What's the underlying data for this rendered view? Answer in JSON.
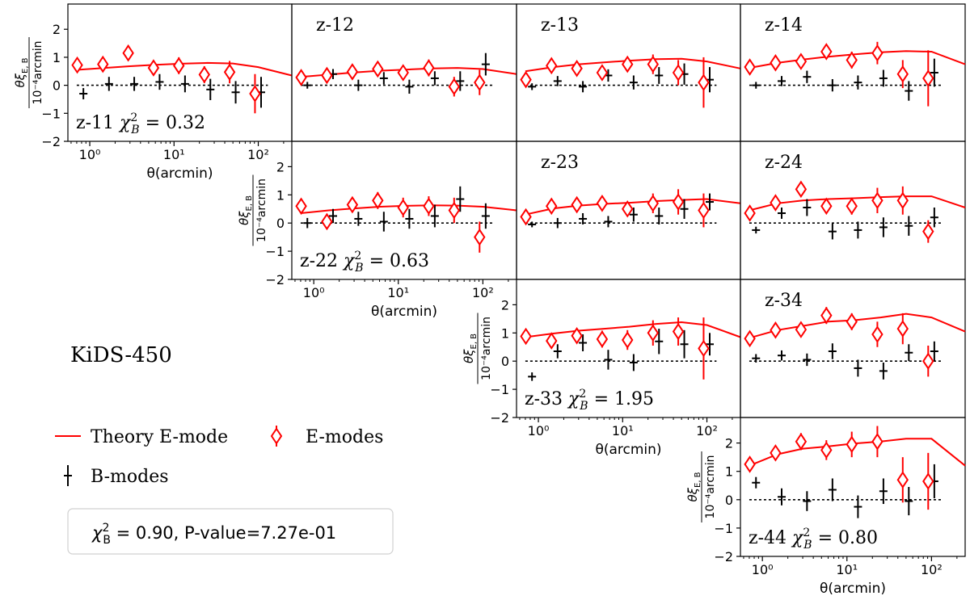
{
  "figure": {
    "survey_label": "KiDS-450",
    "xlabel": "θ(arcmin)",
    "ylabel_top": "θξ",
    "ylabel_sub": "E, B",
    "ylabel_bottom": "10⁻⁴arcmin",
    "summary": "χ²_B = 0.90, P-value=7.27e-01",
    "summary_chi_symbol": "χ",
    "summary_chi_sup": "2",
    "summary_chi_sub": "B",
    "summary_rest": " = 0.90, P-value=7.27e-01"
  },
  "legend": {
    "theory_label": "Theory E-mode",
    "emode_label": "E-modes",
    "bmode_label": "B-modes"
  },
  "colors": {
    "theory": "#ff0000",
    "emode": "#ff0000",
    "bmode": "#000000",
    "zero_line": "#000000"
  },
  "chart_data": {
    "type": "scatter",
    "xscale": "log",
    "xlim": [
      0.55,
      250
    ],
    "ylim": [
      -2,
      2.9
    ],
    "yticks": [
      -2,
      -1,
      0,
      1,
      2
    ],
    "xticks": [
      "10⁰",
      "10¹",
      "10²"
    ],
    "panels": [
      {
        "id": "z-11",
        "label": "z-11",
        "chi2": "0.32",
        "row": 0,
        "col": 0,
        "show_xaxis": true,
        "show_yaxis": true,
        "theory": {
          "x": [
            0.7,
            1.5,
            3,
            6,
            12,
            25,
            50,
            100,
            250
          ],
          "y": [
            0.55,
            0.62,
            0.68,
            0.73,
            0.77,
            0.8,
            0.78,
            0.65,
            0.35
          ]
        },
        "emode": {
          "x": [
            0.71,
            1.43,
            2.86,
            5.71,
            11.4,
            22.9,
            45.7,
            91.4
          ],
          "y": [
            0.72,
            0.75,
            1.15,
            0.62,
            0.7,
            0.38,
            0.47,
            -0.3
          ],
          "err": [
            0.18,
            0.18,
            0.2,
            0.25,
            0.3,
            0.3,
            0.4,
            0.7
          ]
        },
        "bmode": {
          "x": [
            0.84,
            1.69,
            3.37,
            6.74,
            13.5,
            27.0,
            53.9,
            108
          ],
          "y": [
            -0.3,
            0.05,
            0.05,
            0.12,
            0.05,
            -0.15,
            -0.25,
            -0.25
          ],
          "err": [
            0.2,
            0.25,
            0.25,
            0.28,
            0.3,
            0.38,
            0.4,
            0.55
          ]
        }
      },
      {
        "id": "z-12",
        "label": "z-12",
        "chi2": "",
        "row": 0,
        "col": 1,
        "show_xaxis": false,
        "show_yaxis": false,
        "theory": {
          "x": [
            0.7,
            1.5,
            3,
            6,
            12,
            25,
            50,
            100,
            250
          ],
          "y": [
            0.3,
            0.38,
            0.46,
            0.52,
            0.56,
            0.6,
            0.62,
            0.58,
            0.4
          ]
        },
        "emode": {
          "x": [
            0.71,
            1.43,
            2.86,
            5.71,
            11.4,
            22.9,
            45.7,
            91.4
          ],
          "y": [
            0.28,
            0.35,
            0.48,
            0.58,
            0.45,
            0.62,
            -0.05,
            0.1
          ],
          "err": [
            0.15,
            0.15,
            0.18,
            0.2,
            0.25,
            0.3,
            0.35,
            0.45
          ]
        },
        "bmode": {
          "x": [
            0.84,
            1.69,
            3.37,
            6.74,
            13.5,
            27.0,
            53.9,
            108
          ],
          "y": [
            0.0,
            0.4,
            0.0,
            0.25,
            -0.05,
            0.25,
            0.15,
            0.75
          ],
          "err": [
            0.12,
            0.18,
            0.2,
            0.22,
            0.25,
            0.25,
            0.35,
            0.4
          ]
        }
      },
      {
        "id": "z-13",
        "label": "z-13",
        "chi2": "",
        "row": 0,
        "col": 2,
        "show_xaxis": false,
        "show_yaxis": false,
        "theory": {
          "x": [
            0.7,
            1.5,
            3,
            6,
            12,
            25,
            50,
            100,
            250
          ],
          "y": [
            0.5,
            0.65,
            0.75,
            0.82,
            0.88,
            0.93,
            0.95,
            0.85,
            0.6
          ]
        },
        "emode": {
          "x": [
            0.71,
            1.43,
            2.86,
            5.71,
            11.4,
            22.9,
            45.7,
            91.4
          ],
          "y": [
            0.2,
            0.7,
            0.6,
            0.45,
            0.75,
            0.75,
            0.45,
            0.1
          ],
          "err": [
            0.15,
            0.18,
            0.18,
            0.2,
            0.25,
            0.35,
            0.45,
            0.9
          ]
        },
        "bmode": {
          "x": [
            0.84,
            1.69,
            3.37,
            6.74,
            13.5,
            27.0,
            53.9,
            108
          ],
          "y": [
            -0.05,
            0.15,
            -0.05,
            0.35,
            0.1,
            0.35,
            0.4,
            0.2
          ],
          "err": [
            0.12,
            0.18,
            0.2,
            0.22,
            0.25,
            0.3,
            0.38,
            0.45
          ]
        }
      },
      {
        "id": "z-14",
        "label": "z-14",
        "chi2": "",
        "row": 0,
        "col": 3,
        "show_xaxis": false,
        "show_yaxis": false,
        "theory": {
          "x": [
            0.7,
            1.5,
            3,
            6,
            12,
            25,
            50,
            100,
            250
          ],
          "y": [
            0.62,
            0.8,
            0.92,
            1.02,
            1.1,
            1.18,
            1.22,
            1.2,
            0.75
          ]
        },
        "emode": {
          "x": [
            0.71,
            1.43,
            2.86,
            5.71,
            11.4,
            22.9,
            45.7,
            91.4
          ],
          "y": [
            0.65,
            0.8,
            0.85,
            1.2,
            0.9,
            1.15,
            0.4,
            0.25
          ],
          "err": [
            0.18,
            0.18,
            0.2,
            0.22,
            0.3,
            0.4,
            0.5,
            1.0
          ]
        },
        "bmode": {
          "x": [
            0.84,
            1.69,
            3.37,
            6.74,
            13.5,
            27.0,
            53.9,
            108
          ],
          "y": [
            0.0,
            0.15,
            0.3,
            0.0,
            0.1,
            0.25,
            -0.2,
            0.45
          ],
          "err": [
            0.12,
            0.18,
            0.22,
            0.22,
            0.25,
            0.3,
            0.35,
            0.5
          ]
        }
      },
      {
        "id": "z-22",
        "label": "z-22",
        "chi2": "0.63",
        "row": 1,
        "col": 1,
        "show_xaxis": true,
        "show_yaxis": true,
        "theory": {
          "x": [
            0.7,
            1.5,
            3,
            6,
            12,
            25,
            50,
            100,
            250
          ],
          "y": [
            0.35,
            0.45,
            0.52,
            0.58,
            0.61,
            0.63,
            0.62,
            0.58,
            0.45
          ]
        },
        "emode": {
          "x": [
            0.71,
            1.43,
            2.86,
            5.71,
            11.4,
            22.9,
            45.7,
            91.4
          ],
          "y": [
            0.6,
            0.05,
            0.65,
            0.8,
            0.55,
            0.6,
            0.45,
            -0.5
          ],
          "err": [
            0.18,
            0.2,
            0.25,
            0.3,
            0.35,
            0.35,
            0.45,
            0.55
          ]
        },
        "bmode": {
          "x": [
            0.84,
            1.69,
            3.37,
            6.74,
            13.5,
            27.0,
            53.9,
            108
          ],
          "y": [
            0.0,
            0.25,
            0.15,
            0.05,
            0.15,
            0.25,
            0.85,
            0.25
          ],
          "err": [
            0.18,
            0.25,
            0.25,
            0.35,
            0.35,
            0.4,
            0.45,
            0.45
          ]
        }
      },
      {
        "id": "z-23",
        "label": "z-23",
        "chi2": "",
        "row": 1,
        "col": 2,
        "show_xaxis": false,
        "show_yaxis": false,
        "theory": {
          "x": [
            0.7,
            1.5,
            3,
            6,
            12,
            25,
            50,
            100,
            250
          ],
          "y": [
            0.3,
            0.52,
            0.62,
            0.68,
            0.72,
            0.78,
            0.82,
            0.85,
            0.7
          ]
        },
        "emode": {
          "x": [
            0.71,
            1.43,
            2.86,
            5.71,
            11.4,
            22.9,
            45.7,
            91.4
          ],
          "y": [
            0.22,
            0.6,
            0.65,
            0.7,
            0.5,
            0.7,
            0.75,
            0.45
          ],
          "err": [
            0.15,
            0.15,
            0.18,
            0.2,
            0.25,
            0.35,
            0.45,
            0.6
          ]
        },
        "bmode": {
          "x": [
            0.84,
            1.69,
            3.37,
            6.74,
            13.5,
            27.0,
            53.9,
            108
          ],
          "y": [
            -0.05,
            0.0,
            0.15,
            0.05,
            0.3,
            0.25,
            0.5,
            0.75
          ],
          "err": [
            0.1,
            0.18,
            0.2,
            0.2,
            0.25,
            0.3,
            0.35,
            0.3
          ]
        }
      },
      {
        "id": "z-24",
        "label": "z-24",
        "chi2": "",
        "row": 1,
        "col": 3,
        "show_xaxis": false,
        "show_yaxis": false,
        "theory": {
          "x": [
            0.7,
            1.5,
            3,
            6,
            12,
            25,
            50,
            100,
            250
          ],
          "y": [
            0.45,
            0.7,
            0.8,
            0.85,
            0.88,
            0.92,
            0.95,
            0.95,
            0.55
          ]
        },
        "emode": {
          "x": [
            0.71,
            1.43,
            2.86,
            5.71,
            11.4,
            22.9,
            45.7,
            91.4
          ],
          "y": [
            0.35,
            0.72,
            1.2,
            0.6,
            0.6,
            0.8,
            0.8,
            -0.3
          ],
          "err": [
            0.15,
            0.2,
            0.2,
            0.25,
            0.3,
            0.45,
            0.5,
            0.4
          ]
        },
        "bmode": {
          "x": [
            0.84,
            1.69,
            3.37,
            6.74,
            13.5,
            27.0,
            53.9,
            108
          ],
          "y": [
            -0.25,
            0.35,
            0.55,
            -0.3,
            -0.25,
            -0.15,
            -0.1,
            0.2
          ],
          "err": [
            0.12,
            0.2,
            0.3,
            0.28,
            0.3,
            0.35,
            0.35,
            0.35
          ]
        }
      },
      {
        "id": "z-33",
        "label": "z-33",
        "chi2": "1.95",
        "row": 2,
        "col": 2,
        "show_xaxis": true,
        "show_yaxis": true,
        "theory": {
          "x": [
            0.7,
            1.5,
            3,
            6,
            12,
            25,
            50,
            100,
            250
          ],
          "y": [
            0.85,
            0.98,
            1.08,
            1.15,
            1.22,
            1.32,
            1.38,
            1.28,
            0.85
          ]
        },
        "emode": {
          "x": [
            0.71,
            1.43,
            2.86,
            5.71,
            11.4,
            22.9,
            45.7,
            91.4
          ],
          "y": [
            0.88,
            0.72,
            0.9,
            0.78,
            0.75,
            1.0,
            1.05,
            0.45
          ],
          "err": [
            0.15,
            0.2,
            0.25,
            0.3,
            0.35,
            0.45,
            0.5,
            1.1
          ]
        },
        "bmode": {
          "x": [
            0.84,
            1.69,
            3.37,
            6.74,
            13.5,
            27.0,
            53.9,
            108
          ],
          "y": [
            -0.55,
            0.35,
            0.65,
            0.05,
            -0.05,
            0.7,
            0.6,
            0.6
          ],
          "err": [
            0.15,
            0.25,
            0.3,
            0.35,
            0.3,
            0.45,
            0.5,
            0.4
          ]
        }
      },
      {
        "id": "z-34",
        "label": "z-34",
        "chi2": "",
        "row": 2,
        "col": 3,
        "show_xaxis": false,
        "show_yaxis": false,
        "theory": {
          "x": [
            0.7,
            1.5,
            3,
            6,
            12,
            25,
            50,
            100,
            250
          ],
          "y": [
            0.82,
            1.1,
            1.25,
            1.4,
            1.45,
            1.55,
            1.68,
            1.55,
            1.05
          ]
        },
        "emode": {
          "x": [
            0.71,
            1.43,
            2.86,
            5.71,
            11.4,
            22.9,
            45.7,
            91.4
          ],
          "y": [
            0.8,
            1.1,
            1.12,
            1.62,
            1.4,
            0.95,
            1.15,
            0.0
          ],
          "err": [
            0.15,
            0.2,
            0.2,
            0.3,
            0.3,
            0.45,
            0.55,
            0.55
          ]
        },
        "bmode": {
          "x": [
            0.84,
            1.69,
            3.37,
            6.74,
            13.5,
            27.0,
            53.9,
            108
          ],
          "y": [
            0.1,
            0.2,
            0.05,
            0.35,
            -0.25,
            -0.35,
            0.3,
            0.35
          ],
          "err": [
            0.15,
            0.18,
            0.22,
            0.28,
            0.3,
            0.3,
            0.3,
            0.35
          ]
        }
      },
      {
        "id": "z-44",
        "label": "z-44",
        "chi2": "0.80",
        "row": 3,
        "col": 3,
        "show_xaxis": true,
        "show_yaxis": true,
        "theory": {
          "x": [
            0.7,
            1.5,
            3,
            6,
            12,
            25,
            50,
            100,
            250
          ],
          "y": [
            1.2,
            1.6,
            1.8,
            1.88,
            1.98,
            2.05,
            2.15,
            2.15,
            1.2
          ]
        },
        "emode": {
          "x": [
            0.71,
            1.43,
            2.86,
            5.71,
            11.4,
            22.9,
            45.7,
            91.4
          ],
          "y": [
            1.25,
            1.65,
            2.05,
            1.75,
            1.95,
            2.05,
            0.7,
            0.65
          ],
          "err": [
            0.2,
            0.25,
            0.3,
            0.35,
            0.45,
            0.55,
            0.8,
            1.0
          ]
        },
        "bmode": {
          "x": [
            0.84,
            1.69,
            3.37,
            6.74,
            13.5,
            27.0,
            53.9,
            108
          ],
          "y": [
            0.6,
            0.1,
            -0.05,
            0.35,
            -0.25,
            0.3,
            -0.05,
            0.65
          ],
          "err": [
            0.2,
            0.3,
            0.35,
            0.4,
            0.4,
            0.45,
            0.5,
            0.6
          ]
        }
      }
    ]
  }
}
